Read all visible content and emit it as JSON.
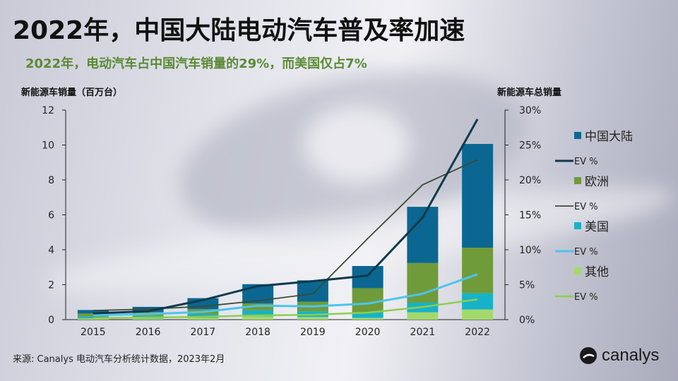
{
  "title": "2022年，中国大陆电动汽车普及率加速",
  "subtitle": "2022年，电动汽车占中国汽车销量的29%，而美国仅占7%",
  "footer": "来源: Canalys 电动汽车分析统计数据，2023年2月",
  "logo": "canalys",
  "chart_data": {
    "type": "bar",
    "stacked": true,
    "categories": [
      "2015",
      "2016",
      "2017",
      "2018",
      "2019",
      "2020",
      "2021",
      "2022"
    ],
    "ylabel": "新能源车销量（百万台）",
    "y2label": "新能源车总销量",
    "ylim": [
      0,
      12
    ],
    "yticks": [
      "0",
      "2",
      "4",
      "6",
      "8",
      "10",
      "12"
    ],
    "y2lim": [
      0,
      30
    ],
    "y2ticks": [
      "0%",
      "5%",
      "10%",
      "15%",
      "20%",
      "25%",
      "30%"
    ],
    "legend_position": "right",
    "series": [
      {
        "name": "其他",
        "type": "bar",
        "color": "#a3d96c",
        "values": [
          0.07,
          0.06,
          0.1,
          0.18,
          0.15,
          0.1,
          0.42,
          0.58
        ]
      },
      {
        "name": "美国",
        "type": "bar",
        "color": "#17b2c9",
        "values": [
          0.1,
          0.15,
          0.2,
          0.35,
          0.33,
          0.3,
          0.55,
          0.93
        ]
      },
      {
        "name": "欧洲",
        "type": "bar",
        "color": "#6f9b3a",
        "values": [
          0.18,
          0.22,
          0.3,
          0.4,
          0.55,
          1.4,
          2.27,
          2.61
        ]
      },
      {
        "name": "中国大陆",
        "type": "bar",
        "color": "#0b6791",
        "values": [
          0.2,
          0.3,
          0.63,
          1.1,
          1.22,
          1.27,
          3.22,
          5.94
        ]
      },
      {
        "name": "EV %",
        "type": "line",
        "ref": "中国大陆",
        "color": "#0e3a4e",
        "width": 3,
        "values": [
          0.9,
          1.2,
          2.8,
          4.8,
          5.5,
          6.3,
          14.6,
          28.7
        ]
      },
      {
        "name": "EV %",
        "type": "line",
        "ref": "欧洲",
        "color": "#3d4a33",
        "width": 1.8,
        "values": [
          1.3,
          1.5,
          1.9,
          2.7,
          3.7,
          11.6,
          19.3,
          22.9
        ]
      },
      {
        "name": "EV %",
        "type": "line",
        "ref": "美国",
        "color": "#4cc4ee",
        "width": 3,
        "values": [
          0.65,
          0.8,
          1.1,
          2.0,
          1.9,
          2.3,
          3.7,
          6.5
        ]
      },
      {
        "name": "EV %",
        "type": "line",
        "ref": "其他",
        "color": "#8ccf4b",
        "width": 2.5,
        "values": [
          0.2,
          0.3,
          0.4,
          0.6,
          0.7,
          1.0,
          1.8,
          2.9
        ]
      }
    ],
    "legend_order": [
      "中国大陆",
      "EV %",
      "欧洲",
      "EV %",
      "美国",
      "EV %",
      "其他",
      "EV %"
    ]
  }
}
